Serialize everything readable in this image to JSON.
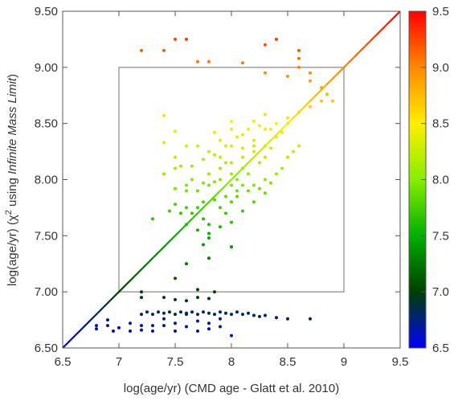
{
  "chart_data": {
    "type": "scatter",
    "title": "",
    "xlabel": "log(age/yr) (CMD age - Glatt et al. 2010)",
    "ylabel_parts": [
      "log(age/yr) (",
      "χ",
      "2",
      " using ",
      "Infinite Mass Limit",
      ")"
    ],
    "xlim": [
      6.5,
      9.5
    ],
    "ylim": [
      6.5,
      9.5
    ],
    "x_ticks": [
      "6.5",
      "7",
      "7.5",
      "8",
      "8.5",
      "9",
      "9.5"
    ],
    "y_ticks": [
      "6.50",
      "7.00",
      "7.50",
      "8.00",
      "8.50",
      "9.00",
      "9.50"
    ],
    "grid": false,
    "one_to_one_line": {
      "from": [
        6.5,
        6.5
      ],
      "to": [
        9.5,
        9.5
      ]
    },
    "highlight_box": {
      "x": [
        7.0,
        9.0
      ],
      "y": [
        7.0,
        9.0
      ],
      "color": "#888888"
    },
    "colorbar": {
      "range": [
        6.5,
        9.5
      ],
      "ticks": [
        "6.5",
        "7.0",
        "7.5",
        "8.0",
        "8.5",
        "9.0",
        "9.5"
      ],
      "colormap": [
        "#0000ff",
        "#004000",
        "#00b000",
        "#88ee00",
        "#ffee00",
        "#ff8800",
        "#ff0000"
      ]
    },
    "points": [
      [
        6.8,
        6.7
      ],
      [
        6.8,
        6.67
      ],
      [
        6.9,
        6.7
      ],
      [
        6.9,
        6.75
      ],
      [
        6.95,
        6.65
      ],
      [
        7.0,
        6.68
      ],
      [
        7.1,
        6.72
      ],
      [
        7.1,
        6.65
      ],
      [
        7.2,
        6.7
      ],
      [
        7.2,
        6.66
      ],
      [
        7.3,
        6.7
      ],
      [
        7.3,
        6.65
      ],
      [
        7.4,
        6.76
      ],
      [
        7.4,
        6.7
      ],
      [
        7.5,
        6.72
      ],
      [
        7.5,
        6.65
      ],
      [
        7.6,
        6.8
      ],
      [
        7.6,
        6.69
      ],
      [
        7.7,
        6.65
      ],
      [
        7.7,
        6.74
      ],
      [
        7.8,
        6.67
      ],
      [
        7.8,
        6.72
      ],
      [
        7.9,
        6.69
      ],
      [
        7.9,
        6.76
      ],
      [
        8.0,
        6.61
      ],
      [
        7.2,
        6.8
      ],
      [
        7.25,
        6.82
      ],
      [
        7.3,
        6.8
      ],
      [
        7.35,
        6.82
      ],
      [
        7.4,
        6.81
      ],
      [
        7.45,
        6.82
      ],
      [
        7.5,
        6.8
      ],
      [
        7.55,
        6.82
      ],
      [
        7.6,
        6.81
      ],
      [
        7.65,
        6.82
      ],
      [
        7.7,
        6.8
      ],
      [
        7.75,
        6.82
      ],
      [
        7.8,
        6.81
      ],
      [
        7.85,
        6.8
      ],
      [
        7.9,
        6.82
      ],
      [
        7.95,
        6.81
      ],
      [
        8.0,
        6.8
      ],
      [
        8.05,
        6.82
      ],
      [
        8.1,
        6.8
      ],
      [
        8.15,
        6.81
      ],
      [
        8.2,
        6.79
      ],
      [
        8.25,
        6.78
      ],
      [
        8.3,
        6.79
      ],
      [
        8.4,
        6.77
      ],
      [
        8.5,
        6.76
      ],
      [
        8.7,
        6.76
      ],
      [
        7.2,
        6.95
      ],
      [
        7.4,
        6.95
      ],
      [
        7.5,
        6.93
      ],
      [
        7.6,
        6.92
      ],
      [
        7.7,
        6.95
      ],
      [
        7.8,
        6.94
      ],
      [
        7.2,
        7.0
      ],
      [
        7.7,
        7.02
      ],
      [
        7.85,
        7.0
      ],
      [
        7.2,
        9.15
      ],
      [
        7.4,
        9.15
      ],
      [
        7.5,
        9.25
      ],
      [
        7.6,
        9.25
      ],
      [
        7.7,
        9.05
      ],
      [
        7.8,
        9.05
      ],
      [
        8.1,
        9.04
      ],
      [
        8.3,
        9.2
      ],
      [
        8.4,
        9.25
      ],
      [
        8.6,
        9.15
      ],
      [
        8.6,
        9.08
      ],
      [
        8.6,
        9.0
      ],
      [
        8.7,
        8.95
      ],
      [
        8.7,
        8.88
      ],
      [
        8.5,
        8.92
      ],
      [
        8.3,
        8.95
      ],
      [
        8.8,
        8.82
      ],
      [
        8.85,
        8.76
      ],
      [
        8.9,
        8.7
      ],
      [
        8.8,
        8.7
      ],
      [
        8.7,
        8.65
      ],
      [
        8.6,
        8.6
      ],
      [
        8.5,
        8.55
      ],
      [
        8.4,
        8.5
      ],
      [
        8.3,
        8.45
      ],
      [
        8.2,
        8.52
      ],
      [
        8.0,
        8.52
      ],
      [
        8.0,
        8.45
      ],
      [
        8.1,
        8.4
      ],
      [
        8.2,
        8.35
      ],
      [
        8.3,
        8.3
      ],
      [
        8.2,
        8.25
      ],
      [
        8.1,
        8.2
      ],
      [
        8.0,
        8.15
      ],
      [
        7.9,
        8.1
      ],
      [
        7.8,
        8.05
      ],
      [
        8.0,
        8.05
      ],
      [
        8.1,
        8.1
      ],
      [
        8.25,
        8.15
      ],
      [
        8.3,
        8.2
      ],
      [
        8.35,
        8.28
      ],
      [
        8.4,
        8.38
      ],
      [
        8.45,
        8.42
      ],
      [
        8.5,
        8.5
      ],
      [
        8.3,
        8.58
      ],
      [
        8.35,
        8.45
      ],
      [
        8.25,
        8.48
      ],
      [
        8.15,
        8.45
      ],
      [
        8.05,
        8.38
      ],
      [
        7.95,
        8.3
      ],
      [
        7.85,
        8.22
      ],
      [
        7.75,
        8.18
      ],
      [
        7.65,
        8.12
      ],
      [
        7.7,
        8.3
      ],
      [
        7.6,
        8.3
      ],
      [
        7.8,
        8.25
      ],
      [
        7.9,
        8.2
      ],
      [
        7.95,
        8.15
      ],
      [
        8.05,
        8.0
      ],
      [
        7.9,
        8.0
      ],
      [
        7.8,
        7.95
      ],
      [
        7.7,
        7.9
      ],
      [
        7.6,
        7.9
      ],
      [
        7.5,
        7.92
      ],
      [
        7.4,
        8.05
      ],
      [
        7.5,
        8.1
      ],
      [
        7.55,
        8.12
      ],
      [
        7.65,
        8.0
      ],
      [
        7.75,
        7.97
      ],
      [
        7.85,
        7.98
      ],
      [
        8.0,
        7.95
      ],
      [
        8.1,
        7.95
      ],
      [
        8.2,
        7.95
      ],
      [
        8.3,
        8.0
      ],
      [
        8.4,
        8.05
      ],
      [
        8.15,
        8.05
      ],
      [
        8.05,
        7.9
      ],
      [
        7.95,
        7.85
      ],
      [
        7.85,
        7.82
      ],
      [
        7.75,
        7.8
      ],
      [
        7.7,
        7.75
      ],
      [
        7.6,
        7.75
      ],
      [
        7.5,
        7.78
      ],
      [
        7.45,
        7.72
      ],
      [
        7.55,
        7.7
      ],
      [
        7.65,
        7.7
      ],
      [
        7.75,
        7.65
      ],
      [
        7.8,
        7.6
      ],
      [
        7.9,
        7.58
      ],
      [
        8.0,
        7.62
      ],
      [
        8.1,
        7.72
      ],
      [
        8.2,
        7.8
      ],
      [
        8.3,
        7.88
      ],
      [
        7.7,
        7.55
      ],
      [
        7.8,
        7.52
      ],
      [
        7.75,
        7.42
      ],
      [
        8.0,
        7.4
      ],
      [
        7.8,
        7.48
      ],
      [
        7.3,
        7.65
      ],
      [
        7.4,
        8.57
      ],
      [
        7.5,
        8.43
      ],
      [
        7.4,
        8.33
      ],
      [
        7.5,
        8.2
      ],
      [
        7.6,
        7.95
      ],
      [
        7.9,
        7.75
      ],
      [
        7.95,
        7.7
      ],
      [
        8.0,
        7.8
      ],
      [
        8.05,
        7.85
      ],
      [
        8.15,
        7.9
      ],
      [
        8.25,
        7.92
      ],
      [
        8.35,
        7.97
      ],
      [
        8.45,
        8.1
      ],
      [
        8.5,
        8.2
      ],
      [
        8.55,
        8.25
      ],
      [
        8.6,
        8.3
      ],
      [
        8.0,
        8.3
      ],
      [
        8.1,
        8.28
      ],
      [
        8.2,
        8.3
      ],
      [
        7.9,
        8.35
      ],
      [
        7.85,
        8.42
      ],
      [
        7.6,
        7.25
      ],
      [
        7.8,
        7.3
      ],
      [
        7.5,
        7.12
      ],
      [
        7.6,
        7.6
      ]
    ]
  }
}
